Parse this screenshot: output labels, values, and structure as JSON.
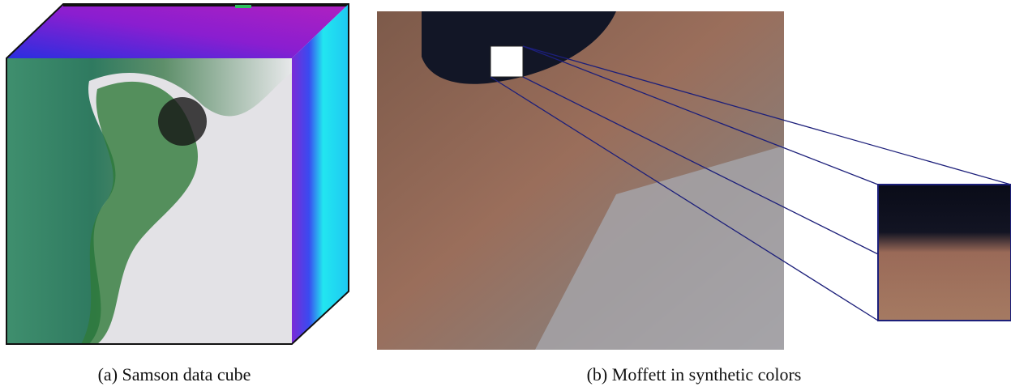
{
  "figure": {
    "subfigures": [
      {
        "caption": "(a) Samson data cube"
      },
      {
        "caption": "(b) Moffett in synthetic colors"
      }
    ]
  }
}
